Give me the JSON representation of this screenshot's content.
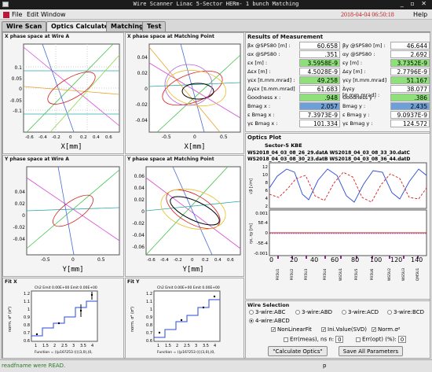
{
  "window": {
    "title": "Wire Scanner Linac 5-Sector HERm- 1 bunch Matching",
    "controls": "_ ▫ ✕"
  },
  "menu": {
    "file": "File",
    "edit": "Edit",
    "window": "Window",
    "timestamp": "2018-04-04 06:50:18",
    "help": "Help"
  },
  "tabs": [
    "Wire Scan",
    "Optics Calculate",
    "Matching",
    "Test"
  ],
  "plots": {
    "x_wire": {
      "title": "X phase space at Wire A",
      "xlabel": "X[mm]",
      "xticks": [
        "-0.6",
        "-0.4",
        "-0.2",
        "0",
        "0.2",
        "0.4",
        "0.6"
      ],
      "yticks": [
        "0.1",
        "0.05",
        "0",
        "-0.05",
        "-0.1"
      ]
    },
    "x_match": {
      "title": "X phase space at Matching Point",
      "xlabel": "X[mm]",
      "xticks": [
        "-0.5",
        "0",
        "0.5"
      ],
      "yticks": [
        "0.04",
        "0.02",
        "0",
        "-0.02",
        "-0.04"
      ]
    },
    "y_wire": {
      "title": "Y phase space at Wire A",
      "xlabel": "Y[mm]",
      "xticks": [
        "-0.5",
        "0",
        "0.5"
      ],
      "yticks": [
        "0.04",
        "0.02",
        "0",
        "-0.02",
        "-0.04"
      ]
    },
    "y_match": {
      "title": "Y phase space at Matching Point",
      "xlabel": "Y[mm]",
      "xticks": [
        "-0.6",
        "-0.4",
        "-0.2",
        "0",
        "0.2",
        "0.4",
        "0.6"
      ],
      "yticks": [
        "0.06",
        "0.04",
        "0.02",
        "0",
        "-0.02",
        "-0.04",
        "-0.06"
      ]
    },
    "fitx": {
      "title": "Fit X",
      "ylabel": "norm. σ² (σ²)",
      "xticks": [
        "1",
        "1.5",
        "2",
        "2.5",
        "3",
        "3.5",
        "4"
      ],
      "yticks": [
        "1.2",
        "1.1",
        "1",
        "0.9",
        "0.8",
        "0.7",
        "0.6"
      ],
      "func": "Function = ((p16?253 ((((3,0),(0,",
      "header": "Ch2 Emit 0.00E+00 Emit 0.00E+00"
    },
    "fity": {
      "title": "Fit Y",
      "ylabel": "norm. σ² (σ²)",
      "xticks": [
        "1",
        "1.5",
        "2",
        "2.5",
        "3",
        "3.5",
        "4"
      ],
      "yticks": [
        "1.2",
        "1.1",
        "1",
        "0.9",
        "0.8",
        "0.7",
        "0.6"
      ],
      "func": "Function = ((p16?253 ((((3,0),(0,",
      "header": "Ch2 Emit 0.00E+00 Emit 0.00E+00"
    }
  },
  "results": {
    "title": "Results of Measurement",
    "rows": [
      {
        "l1": "βx @SP580 [m] :",
        "v1": "60.658",
        "l2": "βy @SP580 [m] :",
        "v2": "46.644",
        "c1": "",
        "c2": ""
      },
      {
        "l1": "αx @SP580 :",
        "v1": ".351",
        "l2": "αy @SP580 :",
        "v2": "2.692",
        "c1": "",
        "c2": ""
      },
      {
        "l1": "εx [m] :",
        "v1": "3.5958E-9",
        "l2": "εy [m] :",
        "v2": "3.7352E-9",
        "c1": "g",
        "c2": "g"
      },
      {
        "l1": "Δεx [m] :",
        "v1": "4.5028E-9",
        "l2": "Δεy [m] :",
        "v2": "2.7796E-9",
        "c1": "",
        "c2": ""
      },
      {
        "l1": "γεx [π.mm.mrad] :",
        "v1": "49.258",
        "l2": "γεy [π.mm.mrad] :",
        "v2": "51.167",
        "c1": "g",
        "c2": "g"
      },
      {
        "l1": "Δγεx [π.mm.mrad] :",
        "v1": "61.683",
        "l2": "Δγεy [π.mm.mrad] :",
        "v2": "38.077",
        "c1": "",
        "c2": ""
      },
      {
        "l1": "Goodness x :",
        "v1": ".948",
        "l2": "Goodness y :",
        "v2": ".386",
        "c1": "g",
        "c2": "g"
      },
      {
        "l1": "Bmag x :",
        "v1": "2.057",
        "l2": "Bmag y :",
        "v2": "2.435",
        "c1": "b",
        "c2": "b"
      },
      {
        "l1": "ε Bmag x :",
        "v1": "7.3973E-9",
        "l2": "ε Bmag y :",
        "v2": "9.0937E-9",
        "c1": "",
        "c2": ""
      },
      {
        "l1": "γε Bmag x :",
        "v1": "101.334",
        "l2": "γε Bmag y :",
        "v2": "124.572",
        "c1": "",
        "c2": ""
      }
    ]
  },
  "optics": {
    "title": "Optics Plot",
    "sector": "Sector-5 KBE",
    "files": [
      "WS2018_04_03_08_26_29.datA  WS2018_04_03_08_33_30.datC",
      "WS2018_04_03_08_30_23.datB  WS2018_04_03_08_36_44.datD"
    ],
    "beta_yticks": [
      "12",
      "10",
      "8",
      "6",
      "4",
      "2"
    ],
    "beta_ylabel": "√β [√m]",
    "eta_yticks": [
      "0.001",
      "5E-4",
      "0",
      "-5E-4",
      "-0.001"
    ],
    "eta_ylabel": "ηx, ηy [m]",
    "xticks": [
      "0",
      "20",
      "40",
      "60",
      "80",
      "100",
      "120",
      "140"
    ],
    "elements": [
      "PR5U1",
      "PR5U2",
      "PR5U3",
      "PR5U4",
      "WS5U1",
      "PR5U5",
      "PR5U6",
      "WS5U2",
      "WS5U3",
      "QM5U1"
    ]
  },
  "wire": {
    "title": "Wire Selection",
    "options": [
      "3-wire:ABC",
      "3-wire:ABD",
      "3-wire:ACD",
      "3-wire:BCD",
      "4-wire:ABCD"
    ],
    "selected": "4-wire:ABCD",
    "checks": [
      "NonLinearFit",
      "Ini.Value(SVD)",
      "Norm.σ²"
    ],
    "err_meas": "Err(meas), ns n:",
    "err_meas_val": "0",
    "err_opt": "Err(opt) (%):",
    "err_opt_val": "0",
    "calc_btn": "\"Calculate Optics\"",
    "save_btn": "Save All Parameters"
  },
  "status": {
    "message": "readfname were READ.",
    "page": "p"
  }
}
